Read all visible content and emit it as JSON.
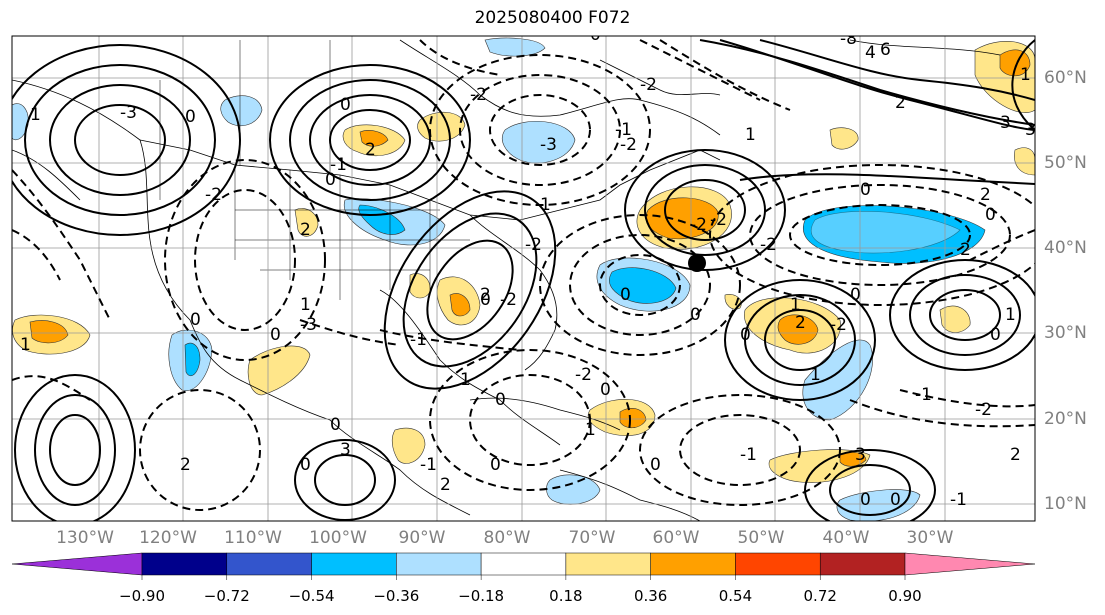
{
  "title": "2025080400 F072",
  "map": {
    "lon_labels": [
      "130°W",
      "120°W",
      "110°W",
      "100°W",
      "90°W",
      "80°W",
      "70°W",
      "60°W",
      "50°W",
      "40°W",
      "30°W"
    ],
    "lat_labels": [
      "60°N",
      "50°N",
      "40°N",
      "30°N",
      "20°N",
      "10°N"
    ],
    "contour_labels": [
      "-3",
      "0",
      "1",
      "-2",
      "0",
      "2",
      "-1",
      "0",
      "4",
      "6",
      "-8",
      "2",
      "3",
      "-3",
      "0",
      "-2",
      "0",
      "-2",
      "2",
      "2",
      "0",
      "-3",
      "0",
      "-1",
      "-2",
      "1",
      "2",
      "-2",
      "0",
      "-1",
      "1",
      "-2",
      "0",
      "1",
      "2",
      "0",
      "-1",
      "0",
      "2",
      "3",
      "0",
      "1",
      "0",
      "-1",
      "-2",
      "0",
      "-2",
      "0",
      "1",
      "3",
      "2",
      "-2",
      "0",
      "0",
      "-1",
      "2",
      "0",
      "1",
      "0",
      "3",
      "1",
      "1",
      "-1",
      "-2",
      "0",
      "0",
      "2",
      "0",
      "1",
      "-2",
      "-2",
      "1"
    ],
    "marker": "storm-position-dot"
  },
  "colorbar": {
    "colors": [
      "#9b30d9",
      "#00008b",
      "#3355cc",
      "#00bfff",
      "#aee0ff",
      "#ffffff",
      "#ffe68a",
      "#ffa000",
      "#ff4500",
      "#b22222",
      "#ff88b0"
    ],
    "tick_labels": [
      "−0.90",
      "−0.72",
      "−0.54",
      "−0.36",
      "−0.18",
      "0.18",
      "0.36",
      "0.54",
      "0.72",
      "0.90"
    ]
  }
}
